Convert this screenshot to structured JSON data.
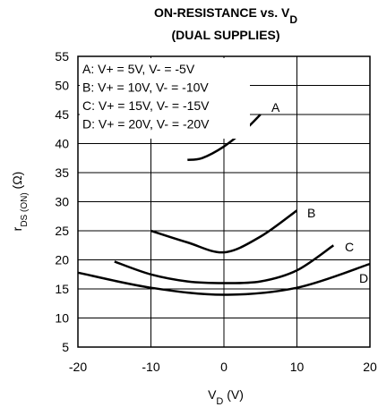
{
  "chart_data": {
    "type": "line",
    "title_line1_main": "ON-RESISTANCE vs. V",
    "title_line1_sub": "D",
    "title_line2": "(DUAL SUPPLIES)",
    "xlabel_main": "V",
    "xlabel_sub": "D",
    "xlabel_unit": " (V)",
    "ylabel_main": "r",
    "ylabel_sub": "DS (ON)",
    "ylabel_unit": " (Ω)",
    "xlim": [
      -20,
      20
    ],
    "ylim": [
      5,
      55
    ],
    "x_ticks": [
      -20,
      -10,
      0,
      10,
      20
    ],
    "y_ticks": [
      5,
      10,
      15,
      20,
      25,
      30,
      35,
      40,
      45,
      50,
      55
    ],
    "grid": true,
    "legend": [
      "A:  V+ = 5V, V- = -5V",
      "B:  V+ = 10V, V- = -10V",
      "C:  V+ = 15V, V- = -15V",
      "D:  V+ = 20V, V- = -20V"
    ],
    "series": [
      {
        "name": "A",
        "x": [
          -5,
          -3,
          0,
          3,
          5
        ],
        "y": [
          37.2,
          37.5,
          39.5,
          42.5,
          45
        ]
      },
      {
        "name": "B",
        "x": [
          -10,
          -5,
          0,
          5,
          10
        ],
        "y": [
          25,
          23,
          21.3,
          24,
          28.5
        ]
      },
      {
        "name": "C",
        "x": [
          -15,
          -10,
          -5,
          0,
          5,
          10,
          15
        ],
        "y": [
          19.7,
          17.5,
          16.3,
          16,
          16.3,
          18.2,
          22.5
        ]
      },
      {
        "name": "D",
        "x": [
          -20,
          -10,
          0,
          10,
          20
        ],
        "y": [
          17.8,
          15.2,
          14,
          15.2,
          19.3
        ]
      }
    ]
  }
}
